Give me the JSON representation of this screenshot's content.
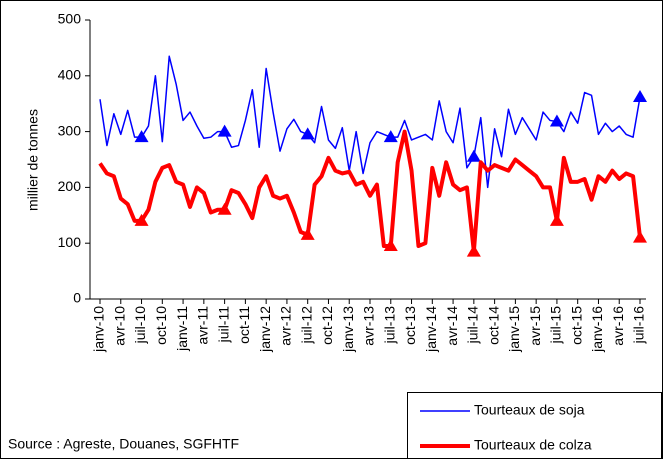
{
  "chart_data": {
    "type": "line",
    "y_label": "millier de tonnes",
    "source": "Source : Agreste, Douanes, SGFHTF",
    "categories": [
      "janv-10",
      null,
      null,
      "avr-10",
      null,
      null,
      "juil-10",
      null,
      null,
      "oct-10",
      null,
      null,
      "janv-11",
      null,
      null,
      "avr-11",
      null,
      null,
      "juil-11",
      null,
      null,
      "oct-11",
      null,
      null,
      "janv-12",
      null,
      null,
      "avr-12",
      null,
      null,
      "juil-12",
      null,
      null,
      "oct-12",
      null,
      null,
      "janv-13",
      null,
      null,
      "avr-13",
      null,
      null,
      "juil-13",
      null,
      null,
      "oct-13",
      null,
      null,
      "janv-14",
      null,
      null,
      "avr-14",
      null,
      null,
      "juil-14",
      null,
      null,
      "oct-14",
      null,
      null,
      "janv-15",
      null,
      null,
      "avr-15",
      null,
      null,
      "juil-15",
      null,
      null,
      "oct-15",
      null,
      null,
      "janv-16",
      null,
      null,
      "avr-16",
      null,
      null,
      "juil-16"
    ],
    "series": [
      {
        "name": "Tourteaux de soja",
        "color": "#0000ff",
        "width": 1.5,
        "values": [
          358,
          275,
          332,
          295,
          338,
          290,
          290,
          310,
          400,
          282,
          435,
          385,
          320,
          335,
          310,
          288,
          290,
          300,
          300,
          272,
          275,
          320,
          375,
          272,
          413,
          335,
          265,
          305,
          322,
          300,
          295,
          280,
          345,
          285,
          270,
          307,
          230,
          300,
          225,
          280,
          300,
          295,
          290,
          290,
          320,
          285,
          290,
          295,
          285,
          355,
          300,
          280,
          342,
          235,
          255,
          325,
          200,
          305,
          255,
          340,
          295,
          325,
          305,
          285,
          335,
          320,
          318,
          300,
          335,
          315,
          370,
          365,
          295,
          315,
          300,
          310,
          295,
          290,
          362
        ]
      },
      {
        "name": "Tourteaux de colza",
        "color": "#ff0000",
        "width": 4,
        "values": [
          243,
          225,
          220,
          180,
          170,
          140,
          140,
          160,
          210,
          235,
          240,
          210,
          205,
          165,
          200,
          190,
          155,
          160,
          160,
          195,
          190,
          170,
          145,
          200,
          220,
          185,
          180,
          185,
          155,
          120,
          115,
          205,
          220,
          253,
          230,
          225,
          228,
          205,
          210,
          185,
          205,
          95,
          95,
          245,
          300,
          230,
          95,
          100,
          235,
          185,
          245,
          205,
          195,
          200,
          85,
          245,
          230,
          240,
          235,
          230,
          250,
          240,
          230,
          220,
          200,
          200,
          140,
          253,
          210,
          210,
          215,
          178,
          220,
          210,
          230,
          215,
          225,
          220,
          110
        ]
      }
    ],
    "markers": [
      6,
      18,
      30,
      42,
      54,
      66,
      78
    ],
    "ylim": [
      0,
      500
    ],
    "yticks": [
      0,
      100,
      200,
      300,
      400,
      500
    ]
  }
}
